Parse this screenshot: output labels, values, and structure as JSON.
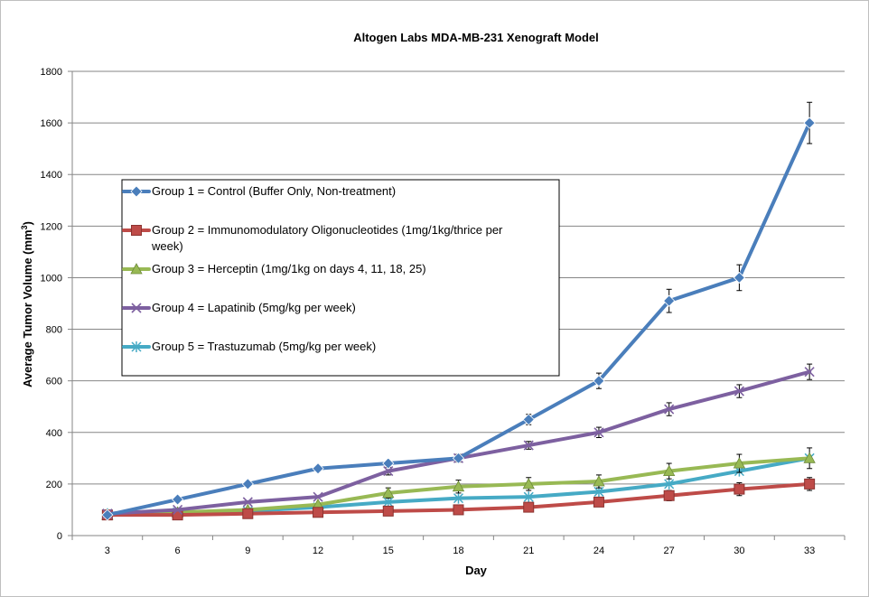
{
  "chart_data": {
    "type": "line",
    "title": "Altogen Labs MDA-MB-231 Xenograft Model",
    "xlabel": "Day",
    "ylabel": "Average Tumor Volume (mm",
    "ylabel_sup": "3",
    "ylabel_end": ")",
    "x": [
      3,
      6,
      9,
      12,
      15,
      18,
      21,
      24,
      27,
      30,
      33
    ],
    "x_ticks": [
      "3",
      "6",
      "9",
      "12",
      "15",
      "18",
      "21",
      "24",
      "27",
      "30",
      "33"
    ],
    "ylim": [
      0,
      1800
    ],
    "y_ticks": [
      "0",
      "200",
      "400",
      "600",
      "800",
      "1000",
      "1200",
      "1400",
      "1600",
      "1800"
    ],
    "grid": "horizontal",
    "legend_position": "left-middle",
    "series": [
      {
        "name": "Group 1 = Control (Buffer Only, Non-treatment)",
        "color": "#4a7ebb",
        "marker": "diamond",
        "values": [
          80,
          140,
          200,
          260,
          280,
          300,
          450,
          600,
          910,
          1000,
          1600
        ],
        "errors": [
          0,
          0,
          0,
          0,
          0,
          0,
          20,
          30,
          45,
          50,
          80
        ]
      },
      {
        "name": "Group 2 = Immunomodulatory Oligonucleotides (1mg/1kg/thrice per week)",
        "name_line1": "Group 2 = Immunomodulatory Oligonucleotides (1mg/1kg/thrice per",
        "name_line2": "week)",
        "color": "#be4b48",
        "marker": "square",
        "values": [
          80,
          80,
          85,
          90,
          95,
          100,
          110,
          130,
          155,
          180,
          200
        ],
        "errors": [
          0,
          0,
          0,
          0,
          0,
          0,
          0,
          0,
          20,
          25,
          25
        ]
      },
      {
        "name": "Group 3 = Herceptin (1mg/1kg on days 4, 11, 18, 25)",
        "color": "#98b954",
        "marker": "triangle",
        "values": [
          80,
          90,
          100,
          120,
          165,
          190,
          200,
          210,
          250,
          280,
          300
        ],
        "errors": [
          0,
          0,
          0,
          0,
          20,
          25,
          25,
          25,
          30,
          35,
          40
        ]
      },
      {
        "name": "Group 4 = Lapatinib (5mg/kg per week)",
        "color": "#7d60a0",
        "marker": "x",
        "values": [
          85,
          100,
          130,
          150,
          250,
          300,
          350,
          400,
          490,
          560,
          635
        ],
        "errors": [
          0,
          0,
          0,
          0,
          15,
          15,
          15,
          20,
          25,
          25,
          30
        ]
      },
      {
        "name": "Group 5 = Trastuzumab (5mg/kg per week)",
        "color": "#46aac5",
        "marker": "star",
        "values": [
          85,
          90,
          95,
          110,
          130,
          145,
          150,
          170,
          200,
          250,
          300
        ],
        "errors": [
          0,
          0,
          0,
          0,
          0,
          0,
          0,
          0,
          0,
          0,
          0
        ]
      }
    ]
  }
}
